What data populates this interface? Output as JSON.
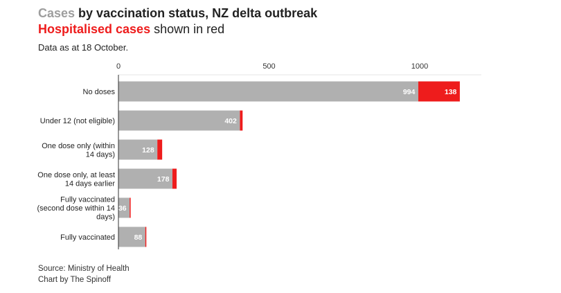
{
  "title": {
    "line1_highlight": "Cases",
    "line1_rest": " by vaccination status, NZ delta outbreak",
    "line2_highlight": "Hospitalised cases",
    "line2_rest": " shown in red"
  },
  "subtitle": "Data as at 18 October.",
  "footer": {
    "source": "Source: Ministry of Health",
    "credit": "Chart by The Spinoff"
  },
  "colors": {
    "cases": "#b0b0b0",
    "hospitalised": "#ee1c1c",
    "grid": "#e6e6e6",
    "axis": "#333333"
  },
  "chart_data": {
    "type": "bar",
    "orientation": "horizontal",
    "stacked": true,
    "title": "Cases by vaccination status, NZ delta outbreak",
    "xlim": [
      0,
      1150
    ],
    "xticks": [
      0,
      500,
      1000
    ],
    "tick_labels": [
      "0",
      "500",
      "1000"
    ],
    "categories": [
      [
        "No doses"
      ],
      [
        "Under 12 (not eligible)"
      ],
      [
        "One dose only (within",
        "14 days)"
      ],
      [
        "One dose only, at least",
        "14 days earlier"
      ],
      [
        "Fully vaccinated",
        "(second dose within 14",
        "days)"
      ],
      [
        "Fully vaccinated"
      ]
    ],
    "series": [
      {
        "name": "Cases",
        "values": [
          994,
          402,
          128,
          178,
          36,
          88
        ]
      },
      {
        "name": "Hospitalised cases",
        "values": [
          138,
          9,
          16,
          14,
          2,
          3
        ]
      }
    ],
    "hospitalised_labels": [
      "138",
      "",
      "",
      "",
      "",
      ""
    ],
    "case_labels": [
      "994",
      "402",
      "128",
      "178",
      "36",
      "88"
    ]
  }
}
